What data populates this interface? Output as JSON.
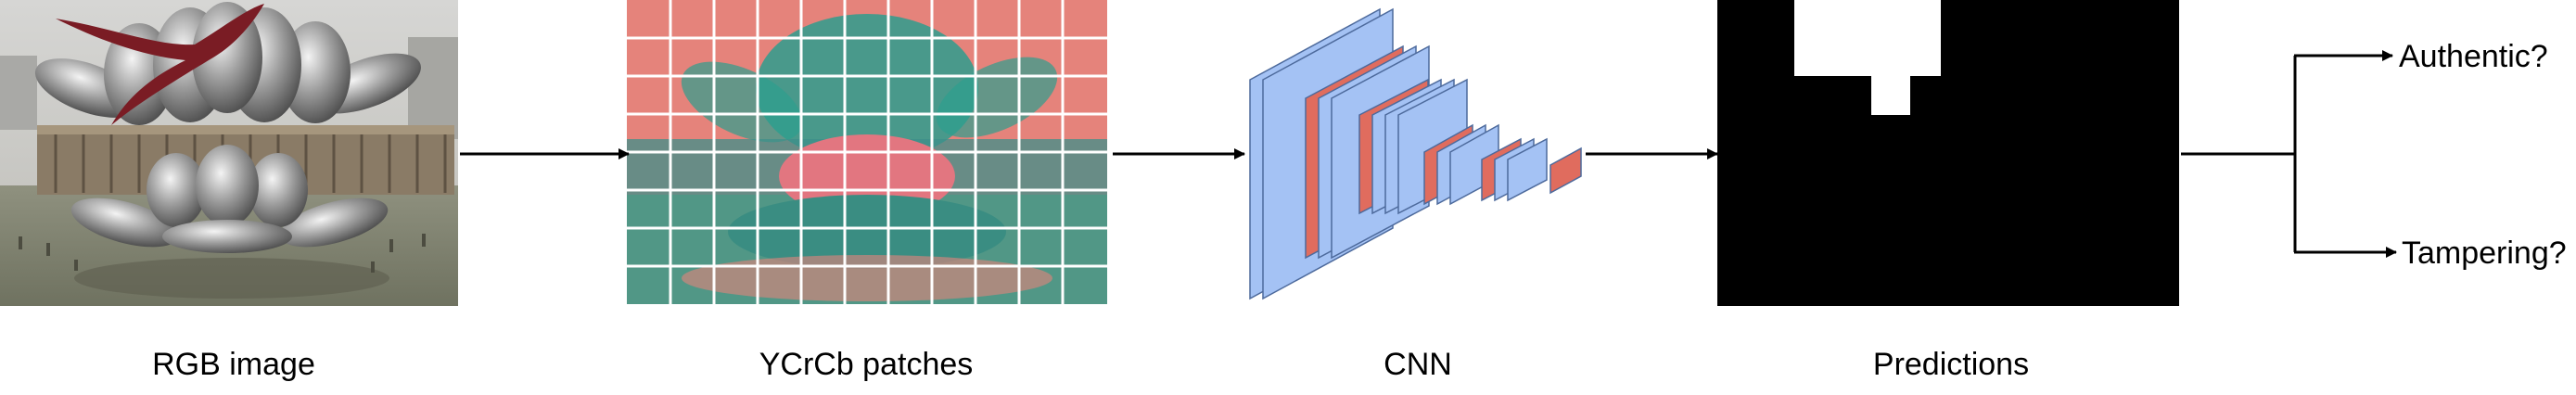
{
  "stages": {
    "rgb": {
      "label": "RGB image"
    },
    "ycrcb": {
      "label": "YCrCb patches"
    },
    "cnn": {
      "label": "CNN"
    },
    "predictions": {
      "label": "Predictions"
    }
  },
  "outputs": {
    "authentic": "Authentic?",
    "tampering": "Tampering?"
  },
  "colors": {
    "cnn_layer_blue": "#a4c2f4",
    "cnn_layer_red": "#e06c5e",
    "patch_background": "#e5837b",
    "patch_teal": "#2e9e8e",
    "grid_lines": "#ffffff",
    "mask_black": "#000000",
    "mask_white": "#ffffff"
  }
}
